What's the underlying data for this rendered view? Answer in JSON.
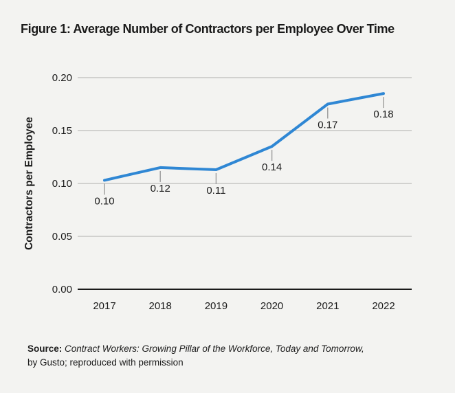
{
  "page": {
    "background_color": "#f3f3f1"
  },
  "chart_data": {
    "type": "line",
    "title": "Figure 1: Average Number of Contractors per Employee Over Time",
    "categories": [
      "2017",
      "2018",
      "2019",
      "2020",
      "2021",
      "2022"
    ],
    "values": [
      0.103,
      0.115,
      0.113,
      0.135,
      0.175,
      0.185
    ],
    "point_labels": [
      "0.10",
      "0.12",
      "0.11",
      "0.14",
      "0.17",
      "0.18"
    ],
    "ylabel": "Contractors per Employee",
    "xlabel": "",
    "ylim": [
      0.0,
      0.2
    ],
    "ytick_labels": [
      "0.00",
      "0.05",
      "0.10",
      "0.15",
      "0.20"
    ],
    "grid": "horizontal",
    "legend": "none",
    "colors": {
      "line": "#2f87d4",
      "grid": "#c6c6c4",
      "axis": "#1a1a1a",
      "text": "#1a1a1a",
      "leader": "#9b9b9b"
    }
  },
  "source": {
    "label": "Source:",
    "work_title": "Contract Workers: Growing Pillar of the Workforce, Today and Tomorrow,",
    "attribution": "by Gusto; reproduced with permission"
  }
}
